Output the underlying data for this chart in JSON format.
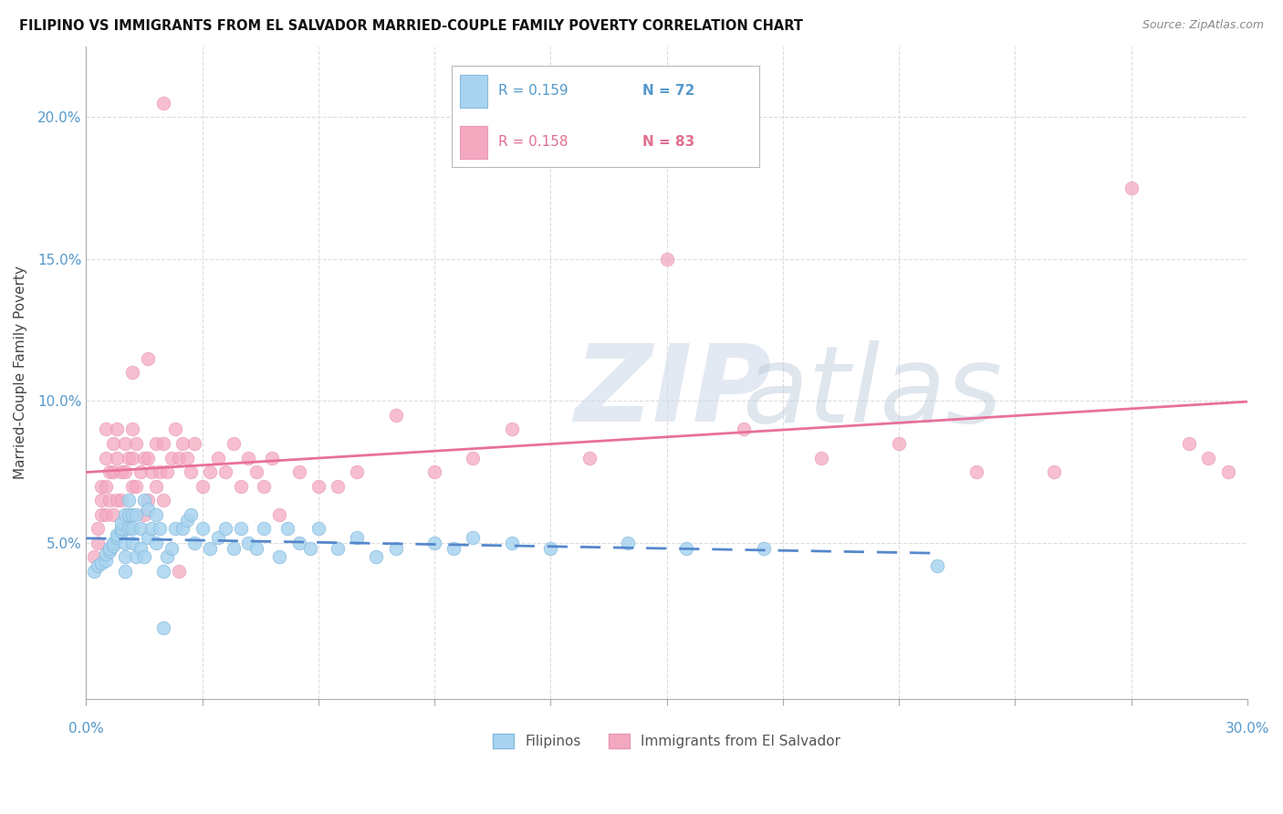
{
  "title": "FILIPINO VS IMMIGRANTS FROM EL SALVADOR MARRIED-COUPLE FAMILY POVERTY CORRELATION CHART",
  "source": "Source: ZipAtlas.com",
  "ylabel": "Married-Couple Family Poverty",
  "xmin": 0.0,
  "xmax": 0.3,
  "ymin": -0.005,
  "ymax": 0.225,
  "legend_r1": "R = 0.159",
  "legend_n1": "N = 72",
  "legend_r2": "R = 0.158",
  "legend_n2": "N = 83",
  "label1": "Filipinos",
  "label2": "Immigrants from El Salvador",
  "color1": "#a8d4f0",
  "color2": "#f4a8c0",
  "trend1_color": "#5588cc",
  "trend2_color": "#e8709a",
  "axis_label_color": "#5599cc",
  "watermark_color": "#ccd8e8",
  "filipino_x": [
    0.002,
    0.003,
    0.004,
    0.005,
    0.005,
    0.006,
    0.006,
    0.007,
    0.007,
    0.008,
    0.008,
    0.009,
    0.009,
    0.009,
    0.01,
    0.01,
    0.01,
    0.01,
    0.011,
    0.011,
    0.011,
    0.012,
    0.012,
    0.012,
    0.013,
    0.013,
    0.014,
    0.014,
    0.015,
    0.015,
    0.016,
    0.016,
    0.017,
    0.018,
    0.018,
    0.019,
    0.02,
    0.021,
    0.022,
    0.023,
    0.025,
    0.026,
    0.027,
    0.028,
    0.03,
    0.032,
    0.034,
    0.036,
    0.038,
    0.04,
    0.042,
    0.044,
    0.046,
    0.05,
    0.052,
    0.055,
    0.058,
    0.06,
    0.065,
    0.07,
    0.075,
    0.08,
    0.09,
    0.095,
    0.1,
    0.11,
    0.12,
    0.14,
    0.155,
    0.175,
    0.22,
    0.02
  ],
  "filipino_y": [
    0.04,
    0.042,
    0.043,
    0.044,
    0.046,
    0.047,
    0.048,
    0.049,
    0.05,
    0.052,
    0.053,
    0.054,
    0.055,
    0.057,
    0.04,
    0.045,
    0.05,
    0.06,
    0.055,
    0.06,
    0.065,
    0.05,
    0.055,
    0.06,
    0.045,
    0.06,
    0.048,
    0.055,
    0.045,
    0.065,
    0.052,
    0.062,
    0.055,
    0.05,
    0.06,
    0.055,
    0.04,
    0.045,
    0.048,
    0.055,
    0.055,
    0.058,
    0.06,
    0.05,
    0.055,
    0.048,
    0.052,
    0.055,
    0.048,
    0.055,
    0.05,
    0.048,
    0.055,
    0.045,
    0.055,
    0.05,
    0.048,
    0.055,
    0.048,
    0.052,
    0.045,
    0.048,
    0.05,
    0.048,
    0.052,
    0.05,
    0.048,
    0.05,
    0.048,
    0.048,
    0.042,
    0.02
  ],
  "salvador_x": [
    0.002,
    0.003,
    0.003,
    0.004,
    0.004,
    0.004,
    0.005,
    0.005,
    0.005,
    0.006,
    0.006,
    0.007,
    0.007,
    0.007,
    0.008,
    0.008,
    0.009,
    0.009,
    0.01,
    0.01,
    0.01,
    0.011,
    0.011,
    0.012,
    0.012,
    0.012,
    0.013,
    0.013,
    0.014,
    0.015,
    0.015,
    0.016,
    0.016,
    0.017,
    0.018,
    0.018,
    0.019,
    0.02,
    0.02,
    0.021,
    0.022,
    0.023,
    0.024,
    0.025,
    0.026,
    0.027,
    0.028,
    0.03,
    0.032,
    0.034,
    0.036,
    0.038,
    0.04,
    0.042,
    0.044,
    0.046,
    0.048,
    0.05,
    0.055,
    0.06,
    0.065,
    0.07,
    0.08,
    0.09,
    0.1,
    0.11,
    0.13,
    0.15,
    0.17,
    0.19,
    0.21,
    0.23,
    0.25,
    0.27,
    0.285,
    0.29,
    0.295,
    0.005,
    0.008,
    0.012,
    0.016,
    0.02,
    0.024
  ],
  "salvador_y": [
    0.045,
    0.05,
    0.055,
    0.06,
    0.065,
    0.07,
    0.06,
    0.07,
    0.08,
    0.065,
    0.075,
    0.06,
    0.075,
    0.085,
    0.065,
    0.08,
    0.065,
    0.075,
    0.055,
    0.075,
    0.085,
    0.06,
    0.08,
    0.07,
    0.08,
    0.09,
    0.07,
    0.085,
    0.075,
    0.06,
    0.08,
    0.065,
    0.08,
    0.075,
    0.07,
    0.085,
    0.075,
    0.065,
    0.085,
    0.075,
    0.08,
    0.09,
    0.08,
    0.085,
    0.08,
    0.075,
    0.085,
    0.07,
    0.075,
    0.08,
    0.075,
    0.085,
    0.07,
    0.08,
    0.075,
    0.07,
    0.08,
    0.06,
    0.075,
    0.07,
    0.07,
    0.075,
    0.095,
    0.075,
    0.08,
    0.09,
    0.08,
    0.15,
    0.09,
    0.08,
    0.085,
    0.075,
    0.075,
    0.175,
    0.085,
    0.08,
    0.075,
    0.09,
    0.09,
    0.11,
    0.115,
    0.205,
    0.04
  ]
}
